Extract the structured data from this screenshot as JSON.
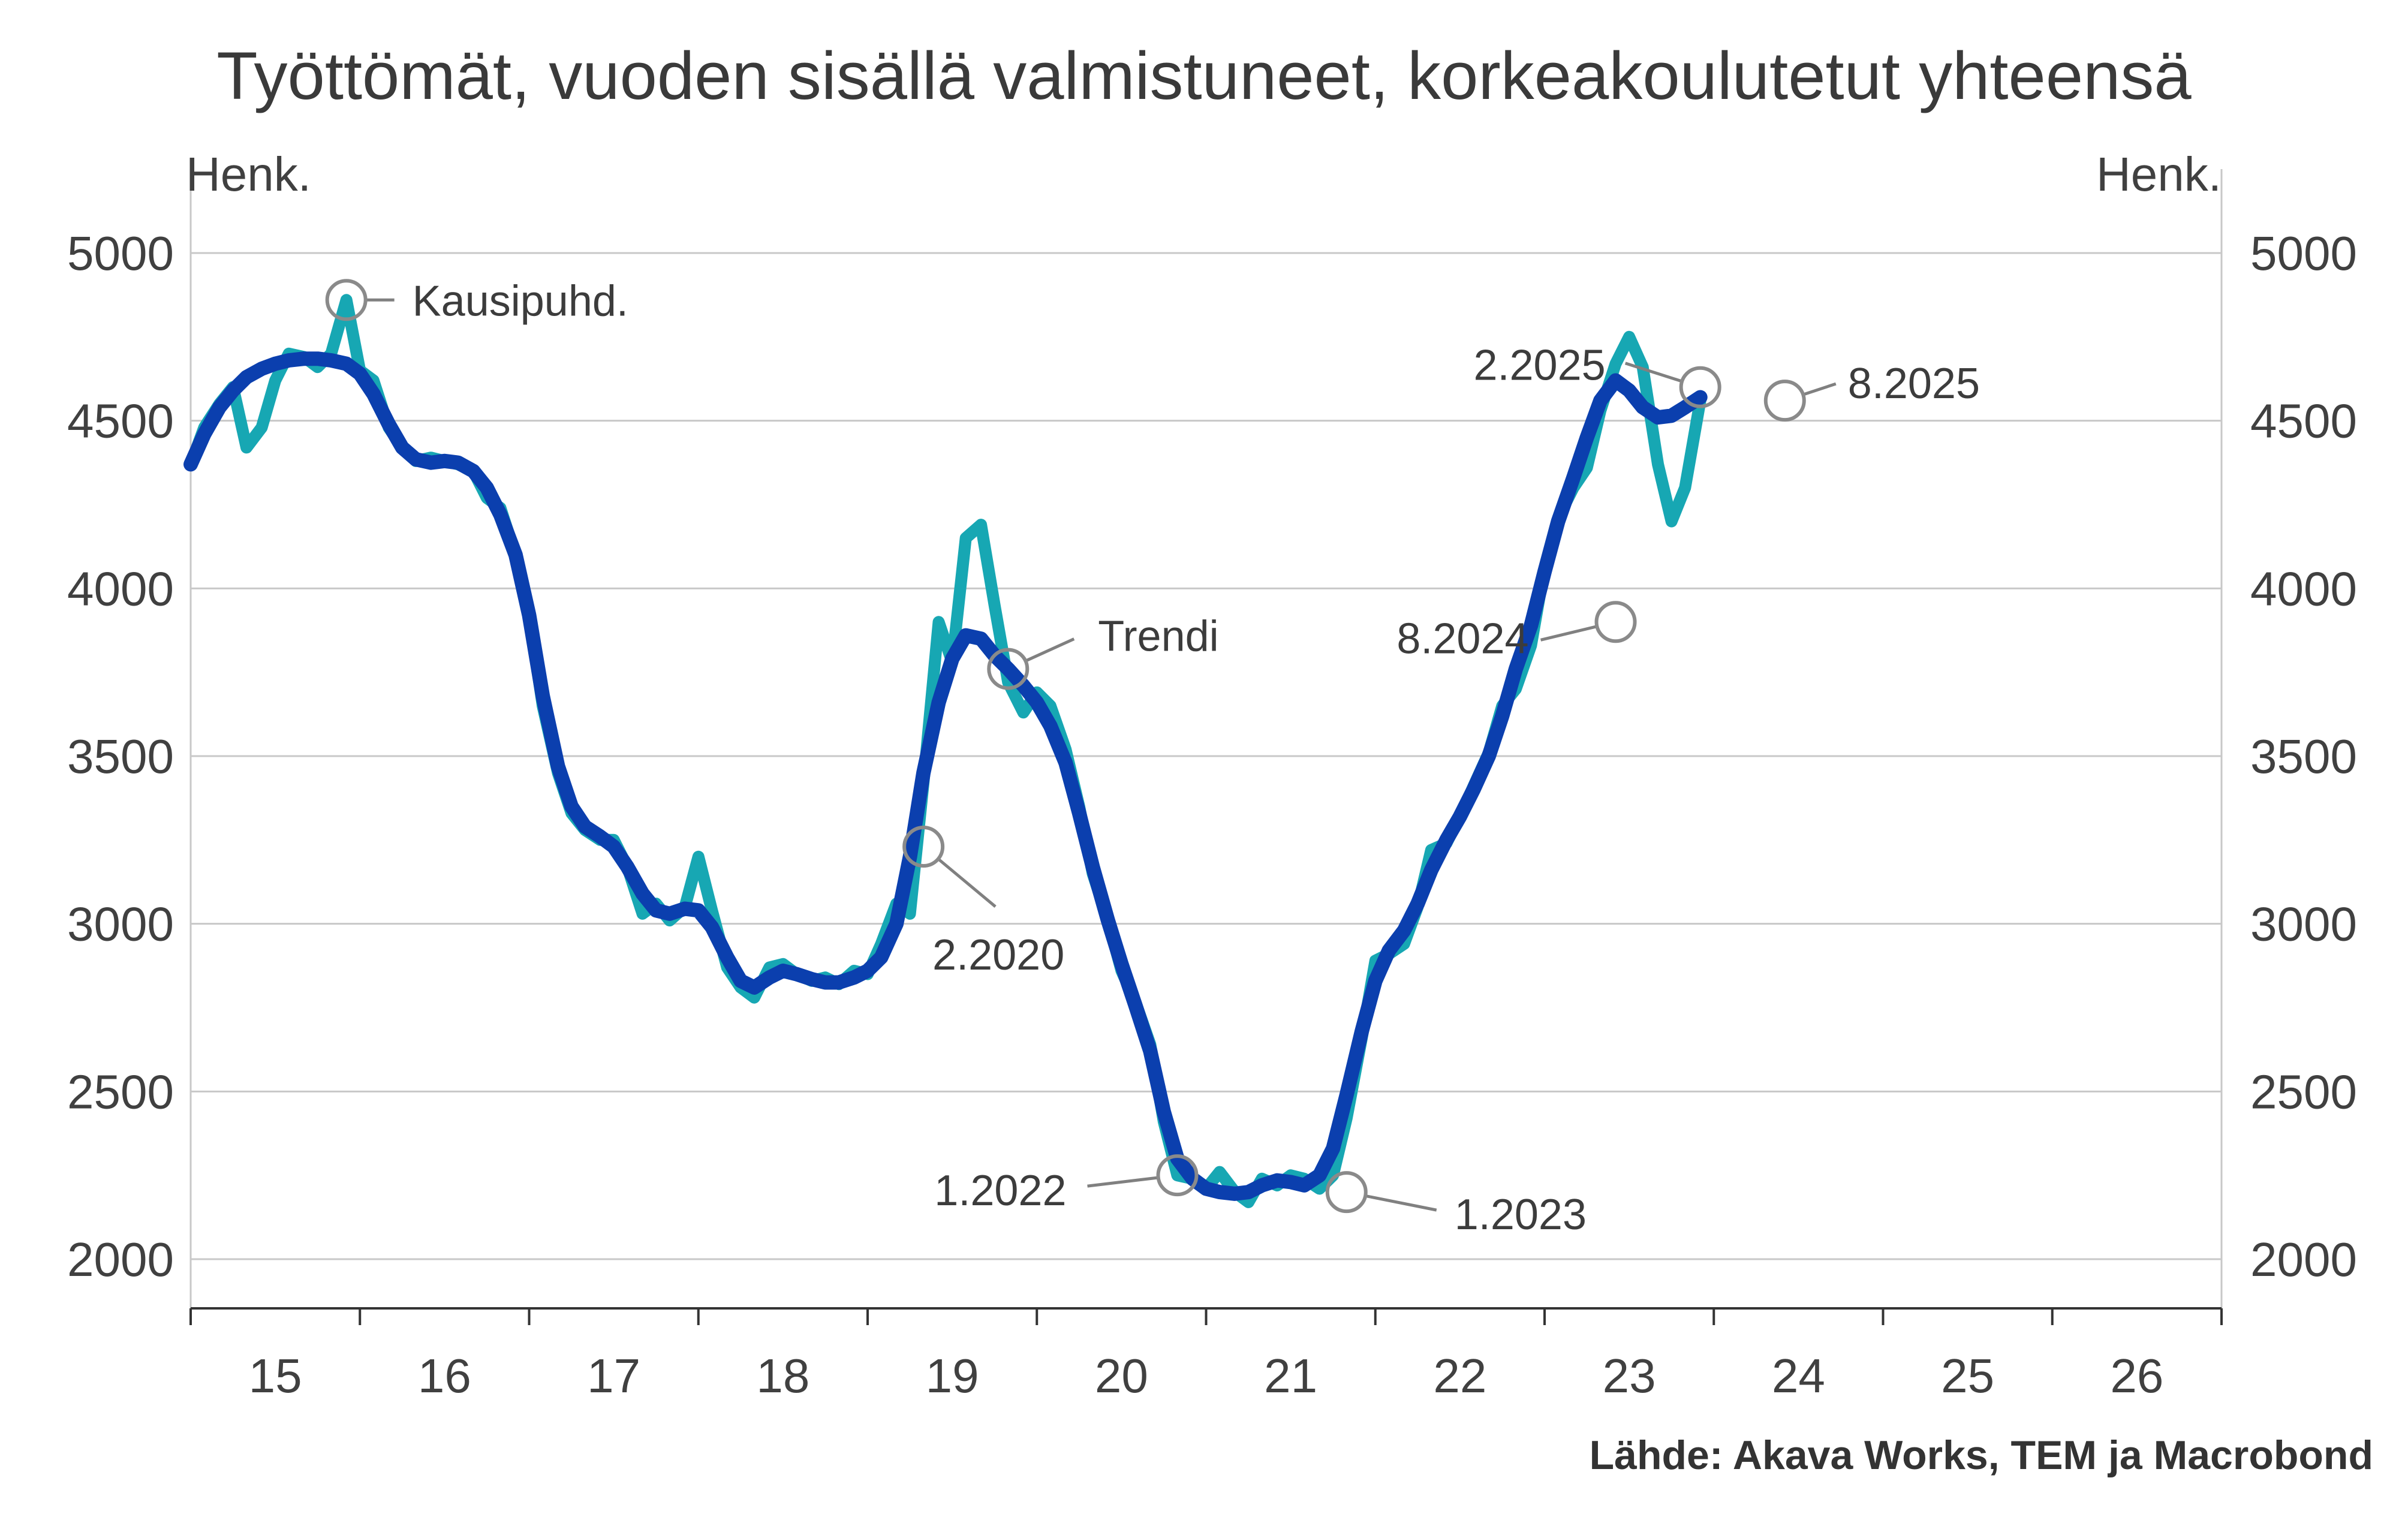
{
  "chart_data": {
    "type": "line",
    "title": "Työttömät, vuoden sisällä valmistuneet, korkeakoulutetut yhteensä",
    "ylabel_left": "Henk.",
    "ylabel_right": "Henk.",
    "ylim": [
      2000,
      5000
    ],
    "yticks": [
      2000,
      2500,
      3000,
      3500,
      4000,
      4500,
      5000
    ],
    "xlim": [
      2015.0,
      2027.0
    ],
    "xticks": [
      "15",
      "16",
      "17",
      "18",
      "19",
      "20",
      "21",
      "22",
      "23",
      "24",
      "25",
      "26"
    ],
    "grid": true,
    "series": [
      {
        "name": "Kausipuhd.",
        "color": "#17a7b3",
        "points": [
          [
            2015.0,
            4370
          ],
          [
            2015.08,
            4480
          ],
          [
            2015.17,
            4550
          ],
          [
            2015.25,
            4600
          ],
          [
            2015.33,
            4420
          ],
          [
            2015.42,
            4480
          ],
          [
            2015.5,
            4620
          ],
          [
            2015.58,
            4700
          ],
          [
            2015.67,
            4690
          ],
          [
            2015.75,
            4660
          ],
          [
            2015.83,
            4700
          ],
          [
            2015.92,
            4860
          ],
          [
            2016.0,
            4650
          ],
          [
            2016.08,
            4620
          ],
          [
            2016.17,
            4480
          ],
          [
            2016.25,
            4420
          ],
          [
            2016.33,
            4380
          ],
          [
            2016.42,
            4390
          ],
          [
            2016.5,
            4380
          ],
          [
            2016.58,
            4370
          ],
          [
            2016.67,
            4350
          ],
          [
            2016.75,
            4270
          ],
          [
            2016.83,
            4240
          ],
          [
            2016.92,
            4100
          ],
          [
            2017.0,
            3920
          ],
          [
            2017.08,
            3650
          ],
          [
            2017.17,
            3450
          ],
          [
            2017.25,
            3330
          ],
          [
            2017.33,
            3280
          ],
          [
            2017.42,
            3250
          ],
          [
            2017.5,
            3250
          ],
          [
            2017.58,
            3170
          ],
          [
            2017.67,
            3030
          ],
          [
            2017.75,
            3060
          ],
          [
            2017.83,
            3010
          ],
          [
            2017.92,
            3050
          ],
          [
            2018.0,
            3200
          ],
          [
            2018.08,
            3040
          ],
          [
            2018.17,
            2870
          ],
          [
            2018.25,
            2810
          ],
          [
            2018.33,
            2780
          ],
          [
            2018.42,
            2870
          ],
          [
            2018.5,
            2880
          ],
          [
            2018.58,
            2850
          ],
          [
            2018.67,
            2830
          ],
          [
            2018.75,
            2840
          ],
          [
            2018.83,
            2820
          ],
          [
            2018.92,
            2860
          ],
          [
            2019.0,
            2850
          ],
          [
            2019.08,
            2940
          ],
          [
            2019.17,
            3060
          ],
          [
            2019.25,
            3030
          ],
          [
            2019.33,
            3420
          ],
          [
            2019.42,
            3900
          ],
          [
            2019.5,
            3780
          ],
          [
            2019.58,
            4150
          ],
          [
            2019.67,
            4190
          ],
          [
            2019.75,
            3950
          ],
          [
            2019.83,
            3720
          ],
          [
            2019.92,
            3630
          ],
          [
            2020.0,
            3690
          ],
          [
            2020.08,
            3650
          ],
          [
            2020.17,
            3520
          ],
          [
            2020.25,
            3350
          ],
          [
            2020.33,
            3150
          ],
          [
            2020.42,
            3010
          ],
          [
            2020.5,
            2860
          ],
          [
            2020.58,
            2770
          ],
          [
            2020.67,
            2640
          ],
          [
            2020.75,
            2410
          ],
          [
            2020.83,
            2250
          ],
          [
            2020.92,
            2240
          ],
          [
            2021.0,
            2210
          ],
          [
            2021.08,
            2260
          ],
          [
            2021.17,
            2200
          ],
          [
            2021.25,
            2170
          ],
          [
            2021.33,
            2240
          ],
          [
            2021.42,
            2220
          ],
          [
            2021.5,
            2250
          ],
          [
            2021.58,
            2240
          ],
          [
            2021.67,
            2210
          ],
          [
            2021.75,
            2250
          ],
          [
            2021.83,
            2420
          ],
          [
            2021.92,
            2660
          ],
          [
            2022.0,
            2890
          ],
          [
            2022.08,
            2910
          ],
          [
            2022.17,
            2940
          ],
          [
            2022.25,
            3050
          ],
          [
            2022.33,
            3220
          ],
          [
            2022.42,
            3240
          ],
          [
            2022.5,
            3320
          ],
          [
            2022.58,
            3410
          ],
          [
            2022.67,
            3510
          ],
          [
            2022.75,
            3650
          ],
          [
            2022.83,
            3700
          ],
          [
            2022.92,
            3830
          ],
          [
            2023.0,
            4060
          ],
          [
            2023.08,
            4210
          ],
          [
            2023.17,
            4300
          ],
          [
            2023.25,
            4360
          ],
          [
            2023.33,
            4530
          ],
          [
            2023.42,
            4670
          ],
          [
            2023.5,
            4750
          ],
          [
            2023.58,
            4660
          ],
          [
            2023.67,
            4370
          ],
          [
            2023.75,
            4200
          ],
          [
            2023.83,
            4300
          ],
          [
            2023.92,
            4560
          ]
        ]
      },
      {
        "name": "Trendi",
        "color": "#0b3fae",
        "points": [
          [
            2015.0,
            4370
          ],
          [
            2015.08,
            4460
          ],
          [
            2015.17,
            4540
          ],
          [
            2015.25,
            4590
          ],
          [
            2015.33,
            4630
          ],
          [
            2015.42,
            4655
          ],
          [
            2015.5,
            4670
          ],
          [
            2015.58,
            4680
          ],
          [
            2015.67,
            4685
          ],
          [
            2015.75,
            4685
          ],
          [
            2015.83,
            4680
          ],
          [
            2015.92,
            4670
          ],
          [
            2016.0,
            4640
          ],
          [
            2016.08,
            4580
          ],
          [
            2016.17,
            4490
          ],
          [
            2016.25,
            4420
          ],
          [
            2016.33,
            4385
          ],
          [
            2016.42,
            4375
          ],
          [
            2016.5,
            4380
          ],
          [
            2016.58,
            4375
          ],
          [
            2016.67,
            4350
          ],
          [
            2016.75,
            4300
          ],
          [
            2016.83,
            4220
          ],
          [
            2016.92,
            4100
          ],
          [
            2017.0,
            3920
          ],
          [
            2017.08,
            3680
          ],
          [
            2017.17,
            3470
          ],
          [
            2017.25,
            3350
          ],
          [
            2017.33,
            3290
          ],
          [
            2017.42,
            3260
          ],
          [
            2017.5,
            3230
          ],
          [
            2017.58,
            3170
          ],
          [
            2017.67,
            3090
          ],
          [
            2017.75,
            3040
          ],
          [
            2017.83,
            3030
          ],
          [
            2017.92,
            3045
          ],
          [
            2018.0,
            3040
          ],
          [
            2018.08,
            2990
          ],
          [
            2018.17,
            2900
          ],
          [
            2018.25,
            2830
          ],
          [
            2018.33,
            2810
          ],
          [
            2018.42,
            2840
          ],
          [
            2018.5,
            2860
          ],
          [
            2018.58,
            2850
          ],
          [
            2018.67,
            2835
          ],
          [
            2018.75,
            2825
          ],
          [
            2018.83,
            2825
          ],
          [
            2018.92,
            2840
          ],
          [
            2019.0,
            2860
          ],
          [
            2019.08,
            2900
          ],
          [
            2019.17,
            3000
          ],
          [
            2019.25,
            3200
          ],
          [
            2019.33,
            3450
          ],
          [
            2019.42,
            3660
          ],
          [
            2019.5,
            3790
          ],
          [
            2019.58,
            3860
          ],
          [
            2019.67,
            3850
          ],
          [
            2019.75,
            3800
          ],
          [
            2019.83,
            3760
          ],
          [
            2019.92,
            3710
          ],
          [
            2020.0,
            3660
          ],
          [
            2020.08,
            3590
          ],
          [
            2020.17,
            3480
          ],
          [
            2020.25,
            3330
          ],
          [
            2020.33,
            3170
          ],
          [
            2020.42,
            3010
          ],
          [
            2020.5,
            2880
          ],
          [
            2020.58,
            2760
          ],
          [
            2020.67,
            2620
          ],
          [
            2020.75,
            2440
          ],
          [
            2020.83,
            2300
          ],
          [
            2020.92,
            2240
          ],
          [
            2021.0,
            2210
          ],
          [
            2021.08,
            2200
          ],
          [
            2021.17,
            2195
          ],
          [
            2021.25,
            2200
          ],
          [
            2021.33,
            2220
          ],
          [
            2021.42,
            2235
          ],
          [
            2021.5,
            2230
          ],
          [
            2021.58,
            2220
          ],
          [
            2021.67,
            2250
          ],
          [
            2021.75,
            2330
          ],
          [
            2021.83,
            2490
          ],
          [
            2021.92,
            2680
          ],
          [
            2022.0,
            2830
          ],
          [
            2022.08,
            2920
          ],
          [
            2022.17,
            2980
          ],
          [
            2022.25,
            3060
          ],
          [
            2022.33,
            3160
          ],
          [
            2022.42,
            3250
          ],
          [
            2022.5,
            3320
          ],
          [
            2022.58,
            3400
          ],
          [
            2022.67,
            3500
          ],
          [
            2022.75,
            3620
          ],
          [
            2022.83,
            3760
          ],
          [
            2022.92,
            3890
          ],
          [
            2023.0,
            4050
          ],
          [
            2023.08,
            4200
          ],
          [
            2023.17,
            4330
          ],
          [
            2023.25,
            4450
          ],
          [
            2023.33,
            4560
          ],
          [
            2023.42,
            4620
          ],
          [
            2023.5,
            4590
          ],
          [
            2023.58,
            4540
          ],
          [
            2023.67,
            4510
          ],
          [
            2023.75,
            4515
          ],
          [
            2023.83,
            4540
          ],
          [
            2023.92,
            4570
          ]
        ]
      }
    ],
    "annotations": [
      {
        "text": "Kausipuhd.",
        "x": 2015.92,
        "y": 4860
      },
      {
        "text": "Trendi",
        "x": 2019.83,
        "y": 3760
      },
      {
        "text": "2.2020",
        "x": 2019.33,
        "y": 3230
      },
      {
        "text": "1.2022",
        "x": 2020.83,
        "y": 2250
      },
      {
        "text": "1.2023",
        "x": 2021.83,
        "y": 2200
      },
      {
        "text": "8.2024",
        "x": 2023.42,
        "y": 3900
      },
      {
        "text": "2.2025",
        "x": 2023.92,
        "y": 4600
      },
      {
        "text": "8.2025",
        "x": 2024.42,
        "y": 4560
      }
    ]
  },
  "source": "Lähde: Akava Works, TEM ja Macrobond"
}
